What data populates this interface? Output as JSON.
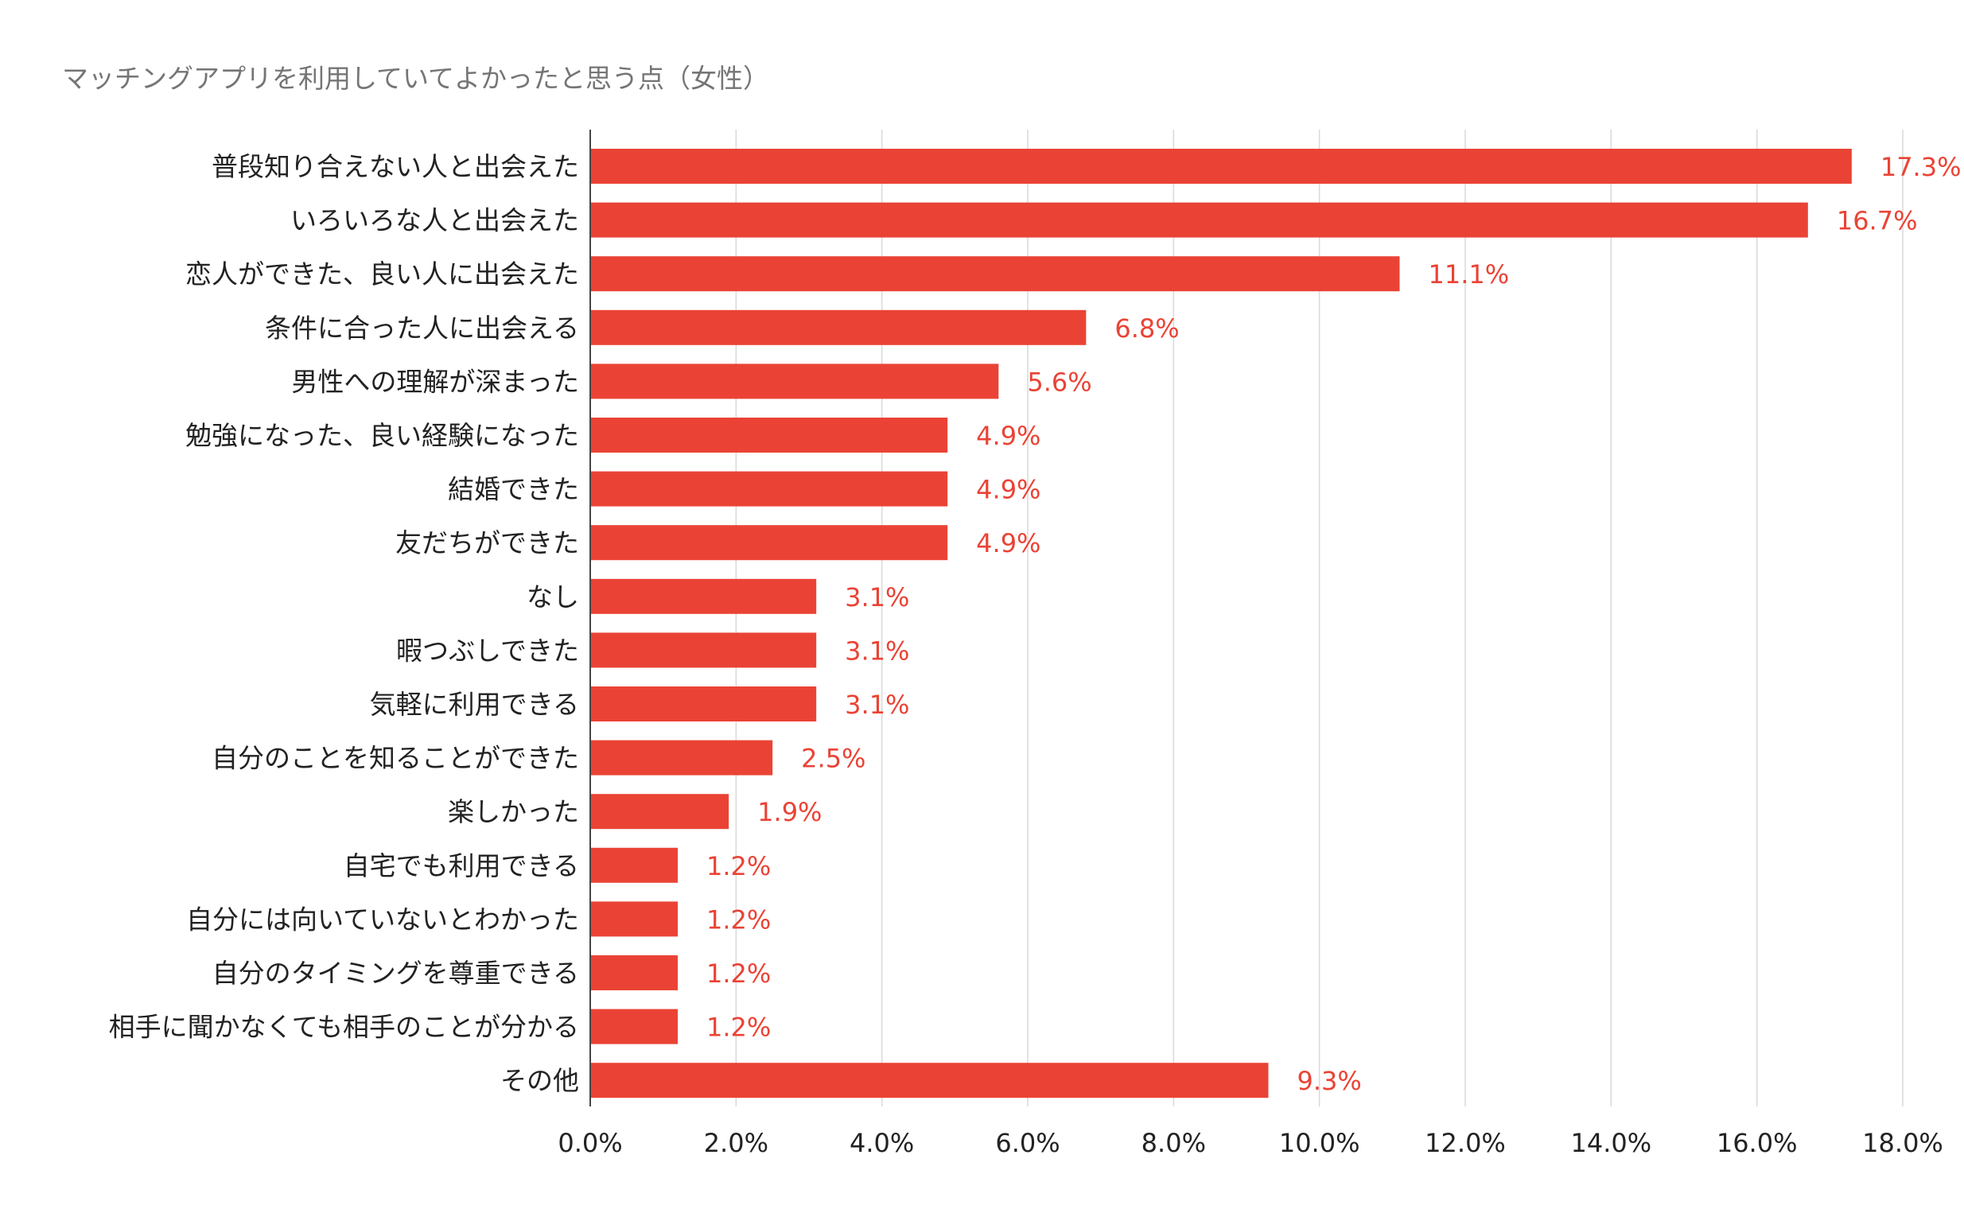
{
  "chart_data": {
    "type": "bar",
    "orientation": "horizontal",
    "title": "マッチングアプリを利用していてよかったと思う点（女性）",
    "categories": [
      "普段知り合えない人と出会えた",
      "いろいろな人と出会えた",
      "恋人ができた、良い人に出会えた",
      "条件に合った人に出会える",
      "男性への理解が深まった",
      "勉強になった、良い経験になった",
      "結婚できた",
      "友だちができた",
      "なし",
      "暇つぶしできた",
      "気軽に利用できる",
      "自分のことを知ることができた",
      "楽しかった",
      "自宅でも利用できる",
      "自分には向いていないとわかった",
      "自分のタイミングを尊重できる",
      "相手に聞かなくても相手のことが分かる",
      "その他"
    ],
    "values": [
      17.3,
      16.7,
      11.1,
      6.8,
      5.6,
      4.9,
      4.9,
      4.9,
      3.1,
      3.1,
      3.1,
      2.5,
      1.9,
      1.2,
      1.2,
      1.2,
      1.2,
      9.3
    ],
    "value_labels": [
      "17.3%",
      "16.7%",
      "11.1%",
      "6.8%",
      "5.6%",
      "4.9%",
      "4.9%",
      "4.9%",
      "3.1%",
      "3.1%",
      "3.1%",
      "2.5%",
      "1.9%",
      "1.2%",
      "1.2%",
      "1.2%",
      "1.2%",
      "9.3%"
    ],
    "xticks": [
      "0.0%",
      "2.0%",
      "4.0%",
      "6.0%",
      "8.0%",
      "10.0%",
      "12.0%",
      "14.0%",
      "16.0%",
      "18.0%"
    ],
    "xlim": [
      0,
      18
    ],
    "xlabel": "",
    "ylabel": "",
    "grid": "vertical",
    "legend": "none",
    "colors": {
      "bar": "#ea4335",
      "value_label": "#ea4335",
      "grid": "#d9d9d9",
      "axis": "#444444"
    }
  }
}
